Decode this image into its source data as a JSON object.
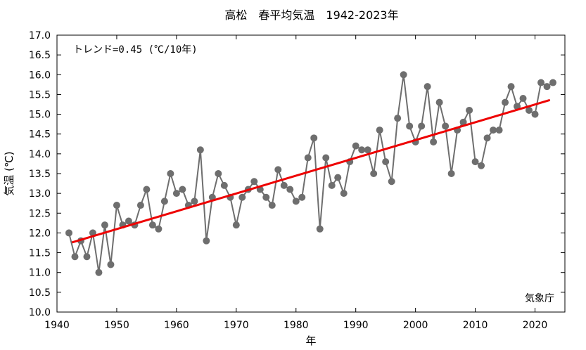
{
  "chart_data": {
    "type": "line",
    "title": "高松　春平均気温　1942-2023年",
    "xlabel": "年",
    "ylabel": "気温 (℃)",
    "xlim": [
      1940,
      2025
    ],
    "ylim": [
      10.0,
      17.0
    ],
    "x_ticks": [
      1940,
      1950,
      1960,
      1970,
      1980,
      1990,
      2000,
      2010,
      2020
    ],
    "y_ticks": [
      "10.0",
      "10.5",
      "11.0",
      "11.5",
      "12.0",
      "12.5",
      "13.0",
      "13.5",
      "14.0",
      "14.5",
      "15.0",
      "15.5",
      "16.0",
      "16.5",
      "17.0"
    ],
    "grid": false,
    "trend_label": "トレンド=0.45 (℃/10年)",
    "source_label": "気象庁",
    "x": [
      1942,
      1943,
      1944,
      1945,
      1946,
      1947,
      1948,
      1949,
      1950,
      1951,
      1952,
      1953,
      1954,
      1955,
      1956,
      1957,
      1958,
      1959,
      1960,
      1961,
      1962,
      1963,
      1964,
      1965,
      1966,
      1967,
      1968,
      1969,
      1970,
      1971,
      1972,
      1973,
      1974,
      1975,
      1976,
      1977,
      1978,
      1979,
      1980,
      1981,
      1982,
      1983,
      1984,
      1985,
      1986,
      1987,
      1988,
      1989,
      1990,
      1991,
      1992,
      1993,
      1994,
      1995,
      1996,
      1997,
      1998,
      1999,
      2000,
      2001,
      2002,
      2003,
      2004,
      2005,
      2006,
      2007,
      2008,
      2009,
      2010,
      2011,
      2012,
      2013,
      2014,
      2015,
      2016,
      2017,
      2018,
      2019,
      2020,
      2021,
      2022,
      2023
    ],
    "series": [
      {
        "values": [
          12.0,
          11.4,
          11.8,
          11.4,
          12.0,
          11.0,
          12.2,
          11.2,
          12.7,
          12.2,
          12.3,
          12.2,
          12.7,
          13.1,
          12.2,
          12.1,
          12.8,
          13.5,
          13.0,
          13.1,
          12.7,
          12.8,
          14.1,
          11.8,
          12.9,
          13.5,
          13.2,
          12.9,
          12.2,
          12.9,
          13.1,
          13.3,
          13.1,
          12.9,
          12.7,
          13.6,
          13.2,
          13.1,
          12.8,
          12.9,
          13.9,
          14.4,
          12.1,
          13.9,
          13.2,
          13.4,
          13.0,
          13.8,
          14.2,
          14.1,
          14.1,
          13.5,
          14.6,
          13.8,
          13.3,
          14.9,
          16.0,
          14.7,
          14.3,
          14.7,
          15.7,
          14.3,
          15.3,
          14.7,
          13.5,
          14.6,
          14.8,
          15.1,
          13.8,
          13.7,
          14.4,
          14.6,
          14.6,
          15.3,
          15.7,
          15.2,
          15.4,
          15.1,
          15.0,
          15.8,
          15.7,
          15.8
        ],
        "color": "#6e6e6e"
      }
    ],
    "trend": {
      "x": [
        1942.5,
        2022.5
      ],
      "y": [
        11.76,
        15.36
      ],
      "color": "#ee0000"
    }
  }
}
